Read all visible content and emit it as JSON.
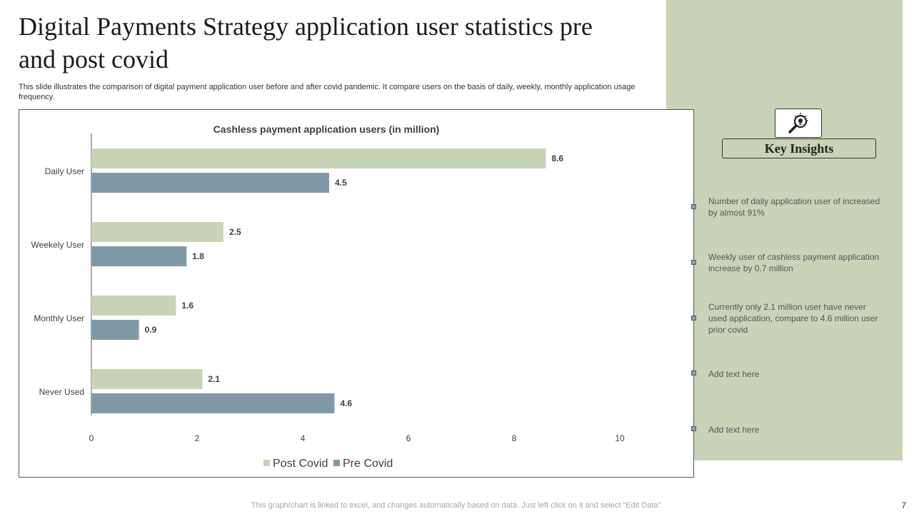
{
  "slide": {
    "title": "Digital Payments Strategy application user statistics pre and post covid",
    "subtitle": "This slide illustrates the comparison of digital payment application user before and after covid pandemic. It compare users on the basis of daily, weekly,  monthly application usage frequency.",
    "footer": "This graph/chart is linked to excel,  and changes automatically based on data. Just left click on it and select “Edit Data”.",
    "page_number": "7"
  },
  "colors": {
    "post_covid": "#c9d3b7",
    "pre_covid": "#7f9aa6",
    "panel": "#c9d3b7"
  },
  "chart_data": {
    "type": "bar",
    "orientation": "horizontal",
    "title": "Cashless payment application users (in million)",
    "categories": [
      "Daily User",
      "Weekely User",
      "Monthly User",
      "Never Used"
    ],
    "series": [
      {
        "name": "Post Covid",
        "values": [
          8.6,
          2.5,
          1.6,
          2.1
        ]
      },
      {
        "name": "Pre Covid",
        "values": [
          4.5,
          1.8,
          0.9,
          4.6
        ]
      }
    ],
    "xlim": [
      0,
      10
    ],
    "xticks": [
      0,
      2,
      4,
      6,
      8,
      10
    ],
    "xlabel": "",
    "ylabel": "",
    "grid": false,
    "legend": "bottom"
  },
  "insights": {
    "heading": "Key Insights",
    "icon": "magnifier-lightbulb-icon",
    "items": [
      "Number  of  daily  application  user of increased by almost 91%",
      "Weekly user of cashless payment application increase by 0.7 million",
      "Currently  only  2.1  million  user  have  never used  application,  compare  to  4.6  million user prior covid",
      "Add text here",
      "Add text here"
    ]
  }
}
